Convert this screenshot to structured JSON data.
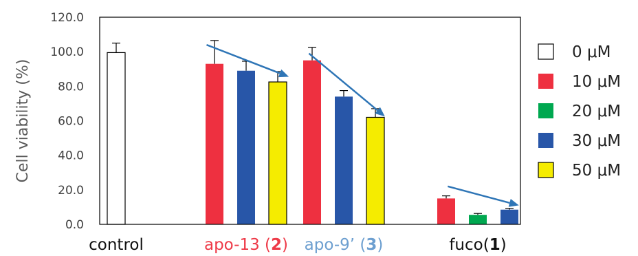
{
  "chart_data": {
    "type": "bar",
    "ylabel": "Cell viability (%)",
    "ylim": [
      0,
      120
    ],
    "yticks": [
      "0.0",
      "20.0",
      "40.0",
      "60.0",
      "80.0",
      "100.0",
      "120.0"
    ],
    "grid": false,
    "legend_position": "right",
    "series": [
      {
        "name": "0 μM",
        "color": "#ffffff"
      },
      {
        "name": "10 μM",
        "color": "#ee3040"
      },
      {
        "name": "20 μM",
        "color": "#00a850"
      },
      {
        "name": "30 μM",
        "color": "#2856a8"
      },
      {
        "name": "50 μM",
        "color": "#f5ec00"
      }
    ],
    "groups": [
      {
        "label": [
          {
            "text": "control",
            "bold": false
          }
        ],
        "label_color": "#111111",
        "bars": [
          {
            "series": 0,
            "value": 99.5,
            "error": 5.5
          }
        ]
      },
      {
        "label": [
          {
            "text": "apo-13 (",
            "bold": false
          },
          {
            "text": "2",
            "bold": true
          },
          {
            "text": ")",
            "bold": false
          }
        ],
        "label_color": "#ee3a48",
        "bars": [
          {
            "series": 1,
            "value": 93.0,
            "error": 13.5
          },
          {
            "series": 3,
            "value": 89.0,
            "error": 5.5
          },
          {
            "series": 4,
            "value": 82.5,
            "error": 6.0
          }
        ],
        "trend": {
          "from": [
            -1.25,
            104.0
          ],
          "to": [
            1.35,
            85.5
          ]
        }
      },
      {
        "label": [
          {
            "text": "apo-9’ (",
            "bold": false
          },
          {
            "text": "3",
            "bold": true
          },
          {
            "text": ")",
            "bold": false
          }
        ],
        "label_color": "#6d9fd0",
        "bars": [
          {
            "series": 1,
            "value": 95.0,
            "error": 7.5
          },
          {
            "series": 3,
            "value": 74.0,
            "error": 3.5
          },
          {
            "series": 4,
            "value": 62.0,
            "error": 5.0
          }
        ],
        "trend": {
          "from": [
            -1.1,
            99.0
          ],
          "to": [
            1.3,
            62.5
          ]
        }
      },
      {
        "label": [
          {
            "text": "fuco(",
            "bold": false
          },
          {
            "text": "1",
            "bold": true
          },
          {
            "text": ")",
            "bold": false
          }
        ],
        "label_color": "#111111",
        "bars": [
          {
            "series": 1,
            "value": 15.0,
            "error": 1.5
          },
          {
            "series": 2,
            "value": 5.5,
            "error": 0.8
          },
          {
            "series": 3,
            "value": 8.5,
            "error": 0.8
          }
        ],
        "trend": {
          "from": [
            -0.95,
            22.0
          ],
          "to": [
            1.3,
            11.0
          ]
        }
      }
    ]
  }
}
